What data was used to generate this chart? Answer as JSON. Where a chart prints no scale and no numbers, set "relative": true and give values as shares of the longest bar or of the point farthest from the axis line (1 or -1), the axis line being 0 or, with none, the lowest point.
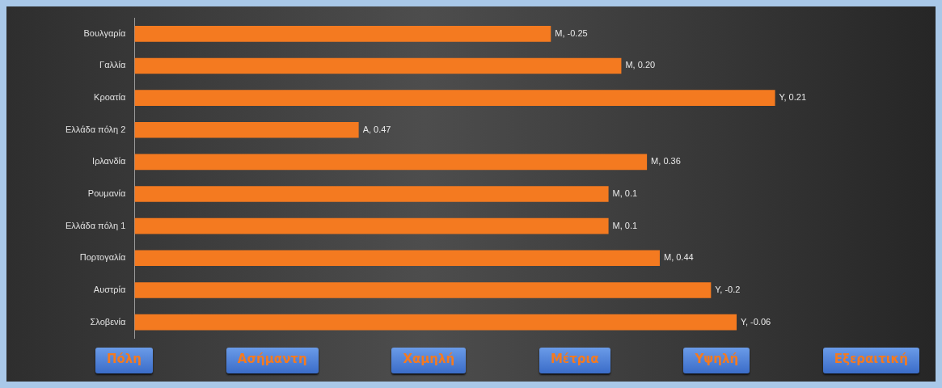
{
  "chart_data": {
    "type": "bar",
    "orientation": "horizontal",
    "relative": true,
    "categories": [
      "Βουλγαρία",
      "Γαλλία",
      "Κροατία",
      "Ελλάδα πόλη 2",
      "Ιρλανδία",
      "Ρουμανία",
      "Ελλάδα πόλη 1",
      "Πορτογαλία",
      "Αυστρία",
      "Σλοβενία"
    ],
    "values": [
      0.65,
      0.76,
      1,
      0.35,
      0.8,
      0.74,
      0.74,
      0.82,
      0.9,
      0.94
    ],
    "color": "#f47a20",
    "annotations": [
      "Μ, -0.25",
      "Μ, 0.20",
      "Υ, 0.21",
      "Α, 0.47",
      "Μ, 0.36",
      "Μ, 0.1",
      "Μ, 0.1",
      "Μ, 0.44",
      "Υ, -0.2",
      "Υ, -0.06",
      "Πόλη",
      "Ασήμαντη",
      "Χαμηλή",
      "Μέτρια",
      "Υψηλή",
      "Εξεραιτική"
    ],
    "legend": false
  }
}
